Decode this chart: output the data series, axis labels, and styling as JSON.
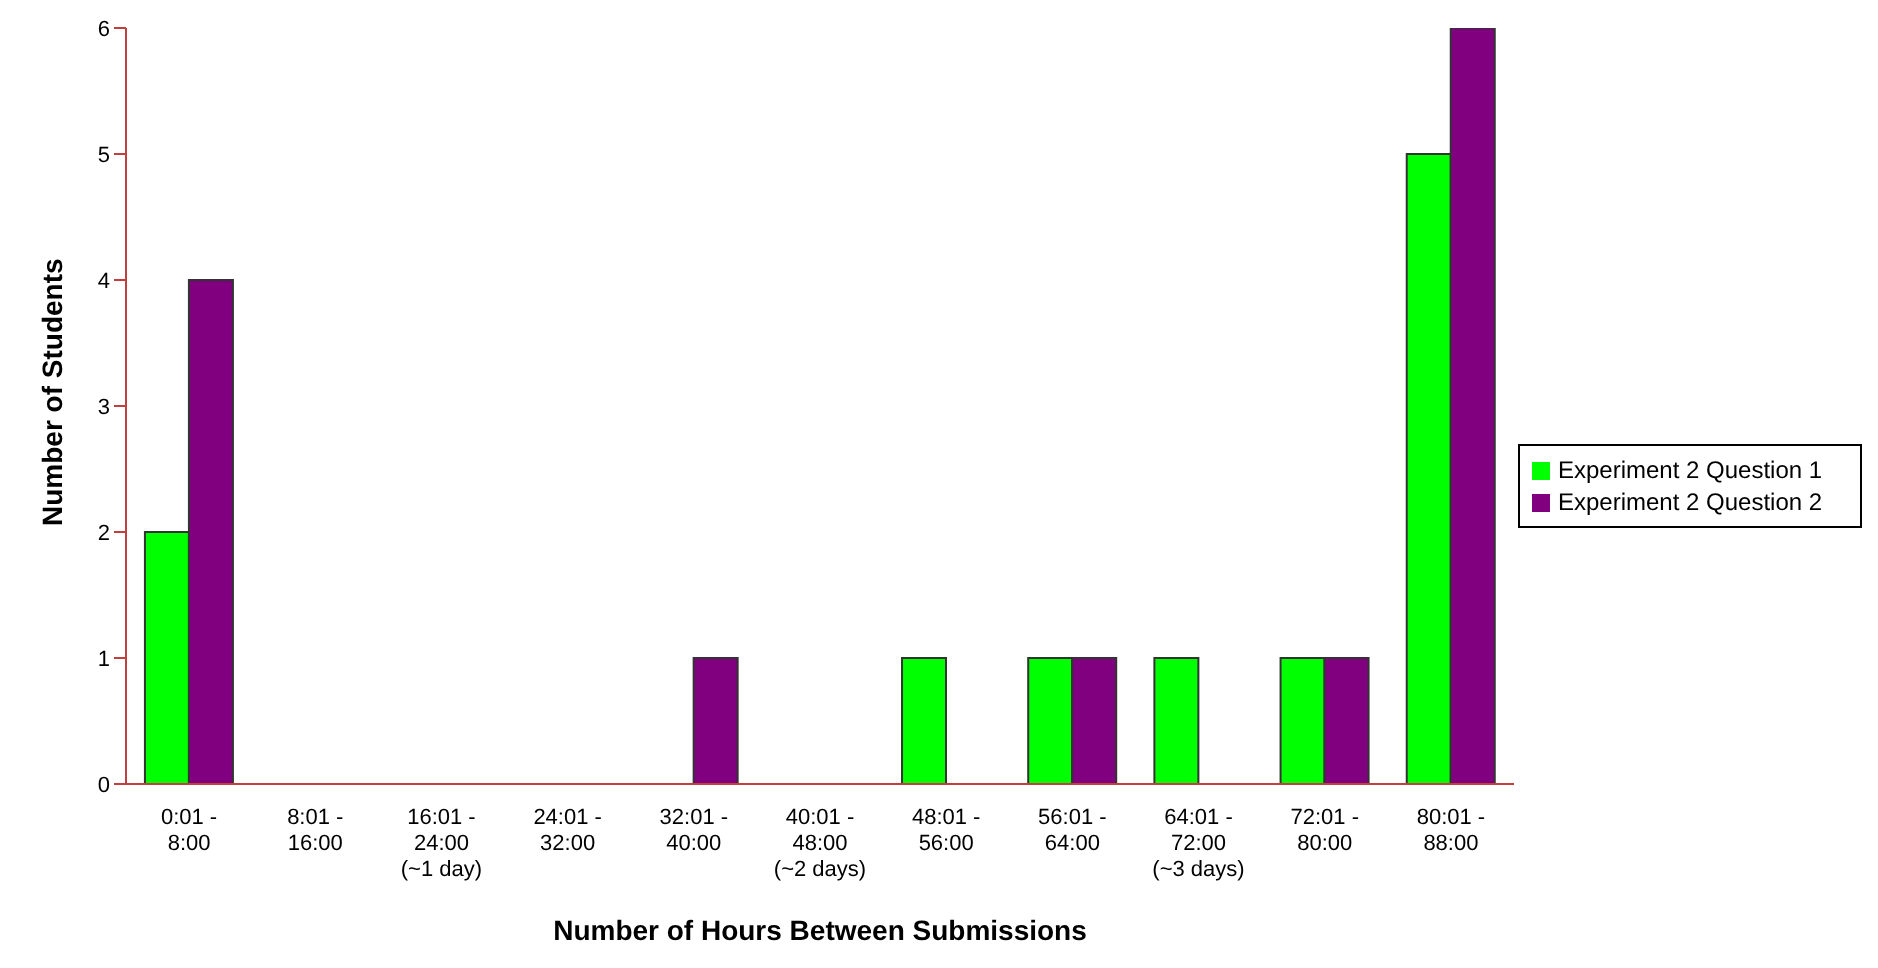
{
  "chart_data": {
    "type": "bar",
    "xlabel": "Number of Hours Between Submissions",
    "ylabel": "Number of Students",
    "categories": [
      "0:01 -\n8:00",
      "8:01 -\n16:00",
      "16:01 -\n24:00\n(~1 day)",
      "24:01 -\n32:00",
      "32:01 -\n40:00",
      "40:01 -\n48:00\n(~2 days)",
      "48:01 -\n56:00",
      "56:01 -\n64:00",
      "64:01 -\n72:00\n(~3 days)",
      "72:01 -\n80:00",
      "80:01 -\n88:00"
    ],
    "series": [
      {
        "name": "Experiment 2 Question 1",
        "color": "#00ff00",
        "values": [
          2,
          0,
          0,
          0,
          0,
          0,
          1,
          1,
          1,
          1,
          5
        ]
      },
      {
        "name": "Experiment 2 Question 2",
        "color": "#800080",
        "values": [
          4,
          0,
          0,
          0,
          1,
          0,
          0,
          1,
          0,
          1,
          6
        ]
      }
    ],
    "ylim": [
      0,
      6
    ],
    "yticks": [
      0,
      1,
      2,
      3,
      4,
      5,
      6
    ],
    "grid": false,
    "legend": "right"
  }
}
